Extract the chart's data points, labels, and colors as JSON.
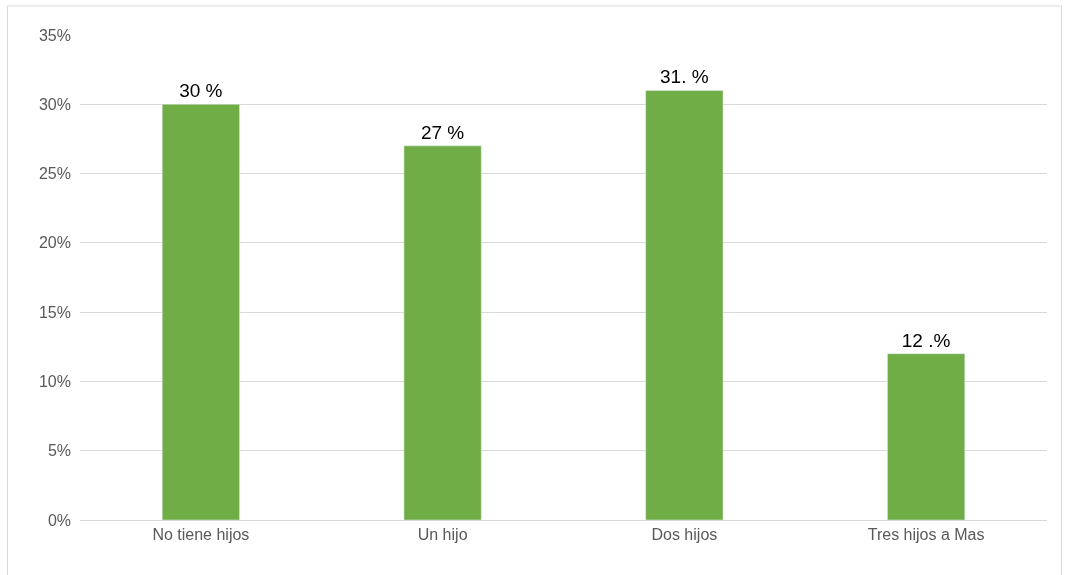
{
  "chart_data": {
    "type": "bar",
    "categories": [
      "No tiene hijos",
      "Un hijo",
      "Dos hijos",
      "Tres hijos a Mas"
    ],
    "values": [
      30,
      27,
      31,
      12
    ],
    "value_labels": [
      "30 %",
      "27 %",
      "31. %",
      "12 .%"
    ],
    "color": "#70ad47",
    "ylim": [
      0,
      35
    ],
    "yticks": [
      {
        "value": 0,
        "label": "0%"
      },
      {
        "value": 5,
        "label": "5%"
      },
      {
        "value": 10,
        "label": "10%"
      },
      {
        "value": 15,
        "label": "15%"
      },
      {
        "value": 20,
        "label": "20%"
      },
      {
        "value": 25,
        "label": "25%"
      },
      {
        "value": 30,
        "label": "30%"
      },
      {
        "value": 35,
        "label": "35%"
      }
    ],
    "grid": "y"
  }
}
